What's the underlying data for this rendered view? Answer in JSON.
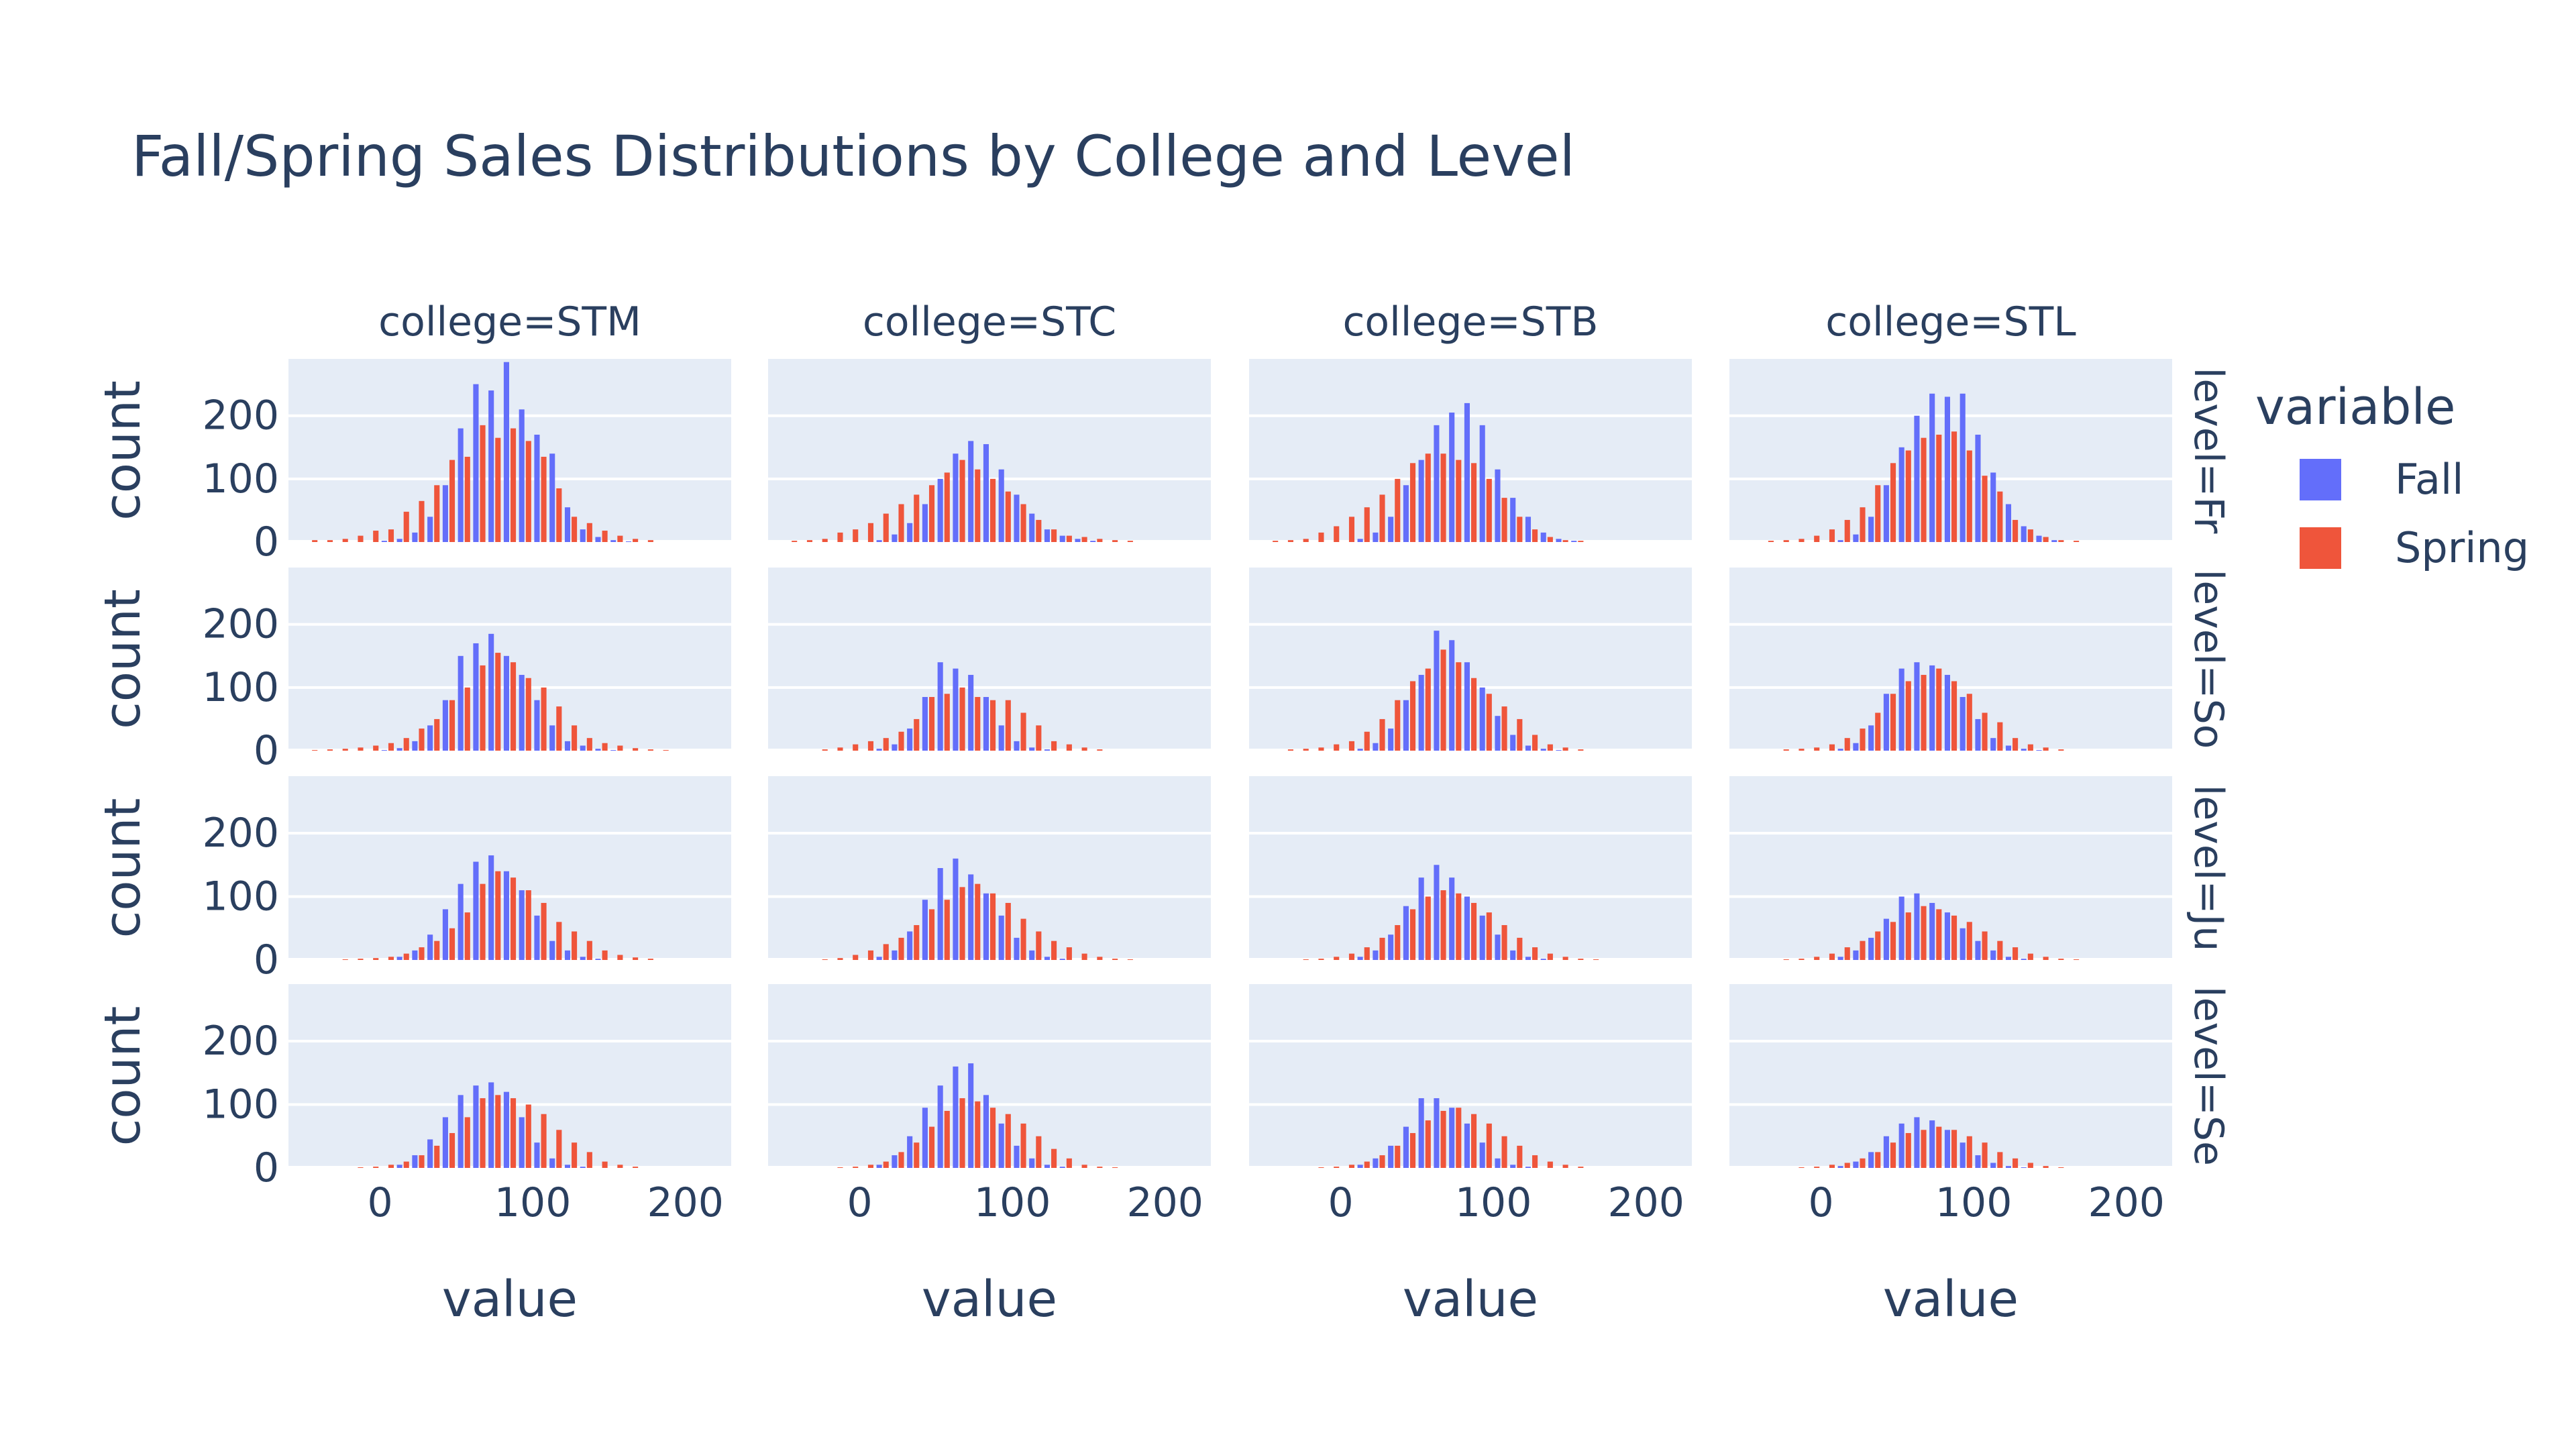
{
  "chart_data": {
    "type": "bar",
    "title": "Fall/Spring Sales Distributions by College and Level",
    "xlabel": "value",
    "ylabel": "count",
    "colleges": [
      "college=STM",
      "college=STC",
      "college=STB",
      "college=STL"
    ],
    "levels": [
      "level=Fr",
      "level=So",
      "level=Ju",
      "level=Se"
    ],
    "xlim": [
      -60,
      230
    ],
    "ylim": [
      0,
      290
    ],
    "xticks": [
      0,
      100,
      200
    ],
    "yticks": [
      0,
      100,
      200
    ],
    "bin_width": 10,
    "bin_starts": [
      -50,
      -40,
      -30,
      -20,
      -10,
      0,
      10,
      20,
      30,
      40,
      50,
      60,
      70,
      80,
      90,
      100,
      110,
      120,
      130,
      140,
      150,
      160,
      170,
      180,
      190,
      200,
      210
    ],
    "legend": {
      "title": "variable",
      "position": "right"
    },
    "colors": {
      "Fall": "#636efa",
      "Spring": "#ef553b",
      "plot_bg": "#e5ecf6",
      "text": "#2a3f5f"
    },
    "grid": true,
    "panels": [
      [
        {
          "Fall": [
            0,
            0,
            0,
            0,
            0,
            2,
            5,
            15,
            40,
            90,
            180,
            250,
            240,
            285,
            210,
            170,
            140,
            55,
            20,
            8,
            3,
            1,
            0,
            0,
            0,
            0,
            0
          ],
          "Spring": [
            3,
            3,
            5,
            10,
            18,
            20,
            48,
            65,
            90,
            130,
            135,
            185,
            165,
            180,
            160,
            135,
            85,
            40,
            30,
            18,
            10,
            5,
            3,
            0,
            0,
            0,
            0
          ]
        },
        {
          "Fall": [
            0,
            0,
            0,
            0,
            0,
            0,
            3,
            12,
            30,
            60,
            100,
            140,
            160,
            155,
            115,
            75,
            45,
            20,
            10,
            5,
            2,
            0,
            0,
            0,
            0,
            0,
            0
          ],
          "Spring": [
            2,
            3,
            5,
            15,
            20,
            30,
            45,
            60,
            75,
            90,
            110,
            130,
            115,
            100,
            80,
            60,
            35,
            20,
            10,
            8,
            5,
            3,
            2,
            0,
            0,
            0,
            0
          ]
        },
        {
          "Fall": [
            0,
            0,
            0,
            0,
            0,
            0,
            5,
            15,
            40,
            90,
            130,
            185,
            205,
            220,
            185,
            115,
            70,
            40,
            15,
            5,
            2,
            0,
            0,
            0,
            0,
            0,
            0
          ],
          "Spring": [
            2,
            3,
            5,
            15,
            25,
            40,
            55,
            75,
            100,
            125,
            140,
            140,
            130,
            125,
            100,
            70,
            40,
            20,
            8,
            3,
            2,
            0,
            0,
            0,
            0,
            0,
            0
          ]
        },
        {
          "Fall": [
            0,
            0,
            0,
            0,
            0,
            0,
            3,
            12,
            40,
            90,
            150,
            200,
            235,
            230,
            235,
            170,
            110,
            60,
            25,
            10,
            3,
            0,
            0,
            0,
            0,
            0,
            0
          ],
          "Spring": [
            0,
            2,
            3,
            5,
            10,
            20,
            35,
            55,
            90,
            125,
            145,
            165,
            170,
            175,
            145,
            105,
            80,
            35,
            20,
            8,
            3,
            2,
            0,
            0,
            0,
            0,
            0
          ]
        }
      ],
      [
        {
          "Fall": [
            0,
            0,
            0,
            0,
            0,
            1,
            4,
            15,
            40,
            80,
            150,
            170,
            185,
            150,
            120,
            80,
            40,
            15,
            8,
            3,
            1,
            0,
            0,
            0,
            0,
            0,
            0
          ],
          "Spring": [
            1,
            2,
            3,
            5,
            8,
            12,
            20,
            35,
            50,
            80,
            100,
            135,
            155,
            140,
            115,
            100,
            70,
            40,
            20,
            12,
            8,
            4,
            2,
            1,
            0,
            0,
            0
          ]
        },
        {
          "Fall": [
            0,
            0,
            0,
            0,
            0,
            0,
            3,
            10,
            35,
            85,
            140,
            130,
            120,
            85,
            40,
            15,
            5,
            2,
            0,
            0,
            0,
            0,
            0,
            0,
            0,
            0,
            0
          ],
          "Spring": [
            0,
            0,
            2,
            5,
            10,
            15,
            20,
            30,
            50,
            85,
            90,
            100,
            85,
            80,
            80,
            60,
            40,
            15,
            10,
            5,
            2,
            0,
            0,
            0,
            0,
            0,
            0
          ]
        },
        {
          "Fall": [
            0,
            0,
            0,
            0,
            0,
            0,
            3,
            12,
            35,
            80,
            120,
            190,
            175,
            140,
            100,
            55,
            25,
            8,
            3,
            1,
            0,
            0,
            0,
            0,
            0,
            0,
            0
          ],
          "Spring": [
            0,
            2,
            3,
            5,
            10,
            15,
            30,
            50,
            80,
            110,
            130,
            160,
            140,
            115,
            90,
            70,
            50,
            25,
            10,
            5,
            2,
            0,
            0,
            0,
            0,
            0,
            0
          ]
        },
        {
          "Fall": [
            0,
            0,
            0,
            0,
            0,
            0,
            3,
            12,
            40,
            90,
            130,
            140,
            135,
            120,
            85,
            50,
            20,
            8,
            3,
            1,
            0,
            0,
            0,
            0,
            0,
            0,
            0
          ],
          "Spring": [
            0,
            0,
            2,
            3,
            5,
            10,
            20,
            35,
            60,
            90,
            110,
            120,
            130,
            110,
            90,
            60,
            45,
            20,
            10,
            5,
            2,
            0,
            0,
            0,
            0,
            0,
            0
          ]
        }
      ],
      [
        {
          "Fall": [
            0,
            0,
            0,
            0,
            0,
            0,
            5,
            15,
            40,
            80,
            120,
            155,
            165,
            140,
            110,
            70,
            30,
            15,
            5,
            2,
            0,
            0,
            0,
            0,
            0,
            0,
            0
          ],
          "Spring": [
            0,
            0,
            1,
            2,
            3,
            5,
            10,
            20,
            30,
            50,
            75,
            120,
            140,
            130,
            110,
            90,
            60,
            45,
            30,
            15,
            8,
            4,
            2,
            0,
            0,
            0,
            0
          ]
        },
        {
          "Fall": [
            0,
            0,
            0,
            0,
            0,
            0,
            5,
            15,
            45,
            95,
            145,
            160,
            135,
            105,
            70,
            35,
            15,
            5,
            2,
            0,
            0,
            0,
            0,
            0,
            0,
            0,
            0
          ],
          "Spring": [
            0,
            0,
            1,
            3,
            8,
            15,
            25,
            35,
            55,
            80,
            95,
            115,
            120,
            105,
            90,
            65,
            45,
            30,
            20,
            10,
            5,
            2,
            1,
            0,
            0,
            0,
            0
          ]
        },
        {
          "Fall": [
            0,
            0,
            0,
            0,
            0,
            0,
            5,
            15,
            40,
            85,
            130,
            150,
            130,
            100,
            70,
            40,
            15,
            5,
            2,
            0,
            0,
            0,
            0,
            0,
            0,
            0,
            0
          ],
          "Spring": [
            0,
            0,
            1,
            2,
            5,
            10,
            20,
            35,
            55,
            80,
            100,
            110,
            105,
            90,
            75,
            55,
            35,
            20,
            10,
            5,
            2,
            1,
            0,
            0,
            0,
            0,
            0
          ]
        },
        {
          "Fall": [
            0,
            0,
            0,
            0,
            0,
            0,
            5,
            15,
            35,
            65,
            100,
            105,
            90,
            75,
            50,
            30,
            15,
            5,
            2,
            0,
            0,
            0,
            0,
            0,
            0,
            0,
            0
          ],
          "Spring": [
            0,
            0,
            1,
            2,
            5,
            10,
            20,
            30,
            45,
            60,
            75,
            85,
            80,
            70,
            60,
            45,
            30,
            20,
            10,
            5,
            2,
            1,
            0,
            0,
            0,
            0,
            0
          ]
        }
      ],
      [
        {
          "Fall": [
            0,
            0,
            0,
            0,
            0,
            0,
            5,
            20,
            45,
            80,
            115,
            130,
            135,
            120,
            80,
            40,
            15,
            5,
            2,
            0,
            0,
            0,
            0,
            0,
            0,
            0,
            0
          ],
          "Spring": [
            0,
            0,
            0,
            1,
            2,
            5,
            10,
            20,
            35,
            55,
            80,
            110,
            115,
            110,
            100,
            85,
            60,
            40,
            25,
            10,
            5,
            2,
            0,
            0,
            0,
            0,
            0
          ]
        },
        {
          "Fall": [
            0,
            0,
            0,
            0,
            0,
            0,
            5,
            20,
            50,
            95,
            130,
            160,
            165,
            115,
            70,
            35,
            15,
            5,
            2,
            0,
            0,
            0,
            0,
            0,
            0,
            0,
            0
          ],
          "Spring": [
            0,
            0,
            0,
            1,
            2,
            5,
            10,
            25,
            40,
            65,
            90,
            110,
            105,
            95,
            85,
            70,
            50,
            30,
            15,
            5,
            2,
            1,
            0,
            0,
            0,
            0,
            0
          ]
        },
        {
          "Fall": [
            0,
            0,
            0,
            0,
            0,
            0,
            5,
            15,
            35,
            65,
            110,
            110,
            95,
            70,
            40,
            15,
            5,
            2,
            0,
            0,
            0,
            0,
            0,
            0,
            0,
            0,
            0
          ],
          "Spring": [
            0,
            0,
            0,
            1,
            2,
            5,
            10,
            20,
            35,
            55,
            75,
            90,
            95,
            85,
            70,
            50,
            35,
            20,
            10,
            5,
            2,
            0,
            0,
            0,
            0,
            0,
            0
          ]
        },
        {
          "Fall": [
            0,
            0,
            0,
            0,
            0,
            0,
            3,
            10,
            25,
            50,
            70,
            80,
            75,
            60,
            40,
            20,
            8,
            3,
            1,
            0,
            0,
            0,
            0,
            0,
            0,
            0,
            0
          ],
          "Spring": [
            0,
            0,
            0,
            1,
            2,
            5,
            8,
            15,
            25,
            40,
            55,
            60,
            65,
            60,
            50,
            40,
            25,
            15,
            8,
            3,
            1,
            0,
            0,
            0,
            0,
            0,
            0
          ]
        }
      ]
    ]
  }
}
